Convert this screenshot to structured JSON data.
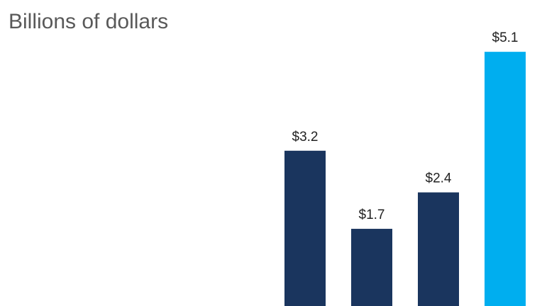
{
  "chart_data": {
    "type": "bar",
    "subtitle": "Billions of dollars",
    "categories": [
      null,
      null,
      null,
      null
    ],
    "values": [
      3.2,
      1.7,
      2.4,
      5.1
    ],
    "value_labels": [
      "$3.2",
      "$1.7",
      "$2.4",
      "$5.1"
    ],
    "colors": [
      "#1a355e",
      "#1a355e",
      "#1a355e",
      "#00aeef"
    ]
  }
}
